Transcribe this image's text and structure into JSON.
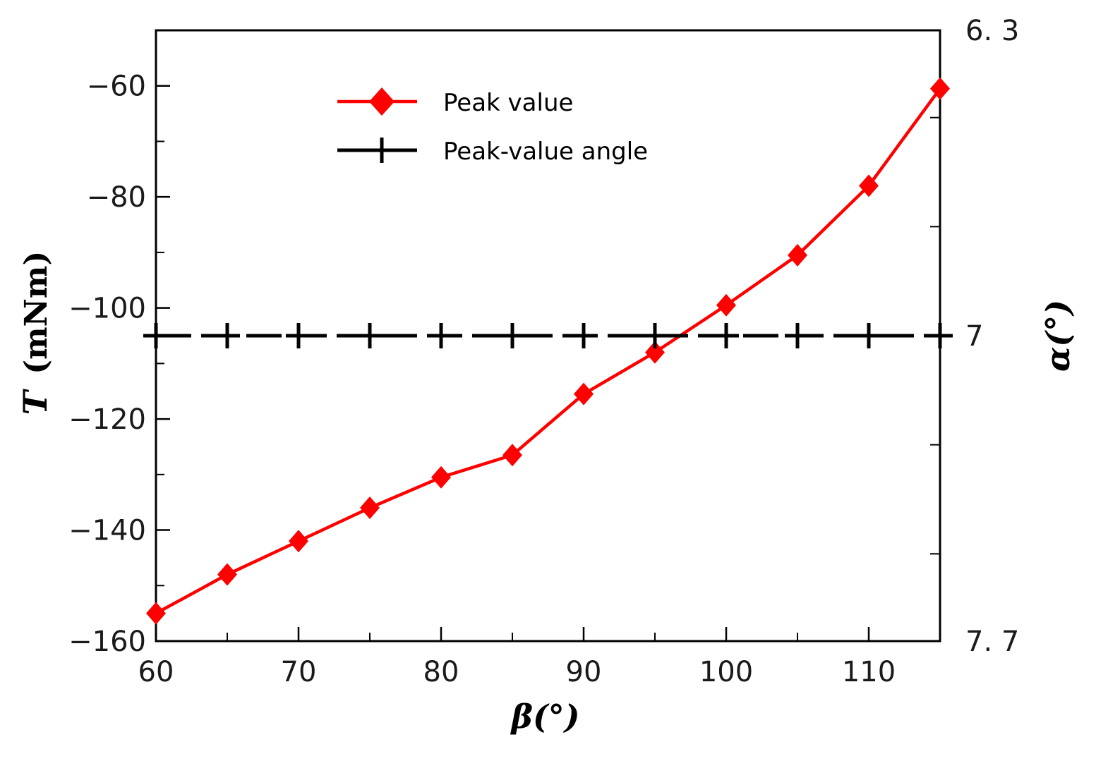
{
  "chart_data": {
    "type": "line",
    "x": [
      60,
      65,
      70,
      75,
      80,
      85,
      90,
      95,
      100,
      105,
      110,
      115
    ],
    "xlabel": "β(°)",
    "xlim": [
      60,
      115
    ],
    "x_ticks": [
      60,
      70,
      80,
      90,
      100,
      110
    ],
    "x_tick_labels": [
      "60",
      "70",
      "80",
      "90",
      "100",
      "110"
    ],
    "y_left": {
      "label_var": "T",
      "label_unit": "(mNm)",
      "lim": [
        -160,
        -50
      ],
      "ticks": [
        -60,
        -80,
        -100,
        -120,
        -140,
        -160
      ],
      "tick_labels": [
        "−60",
        "−80",
        "−100",
        "−120",
        "−140",
        "−160"
      ]
    },
    "y_right": {
      "label": "α(°)",
      "lim": [
        6.3,
        7.7
      ],
      "inverted": true,
      "tick_labels": [
        {
          "value": 6.3,
          "label": "6. 3"
        },
        {
          "value": 7.0,
          "label": "7"
        },
        {
          "value": 7.7,
          "label": "7. 7"
        }
      ]
    },
    "series": [
      {
        "name": "Peak value",
        "axis": "left",
        "color": "#ff0000",
        "marker": "diamond",
        "values": [
          -155,
          -148,
          -142,
          -136,
          -130.5,
          -126.5,
          -115.5,
          -108,
          -99.5,
          -90.5,
          -78,
          -60.5
        ]
      },
      {
        "name": "Peak-value angle",
        "axis": "right",
        "color": "#000000",
        "marker": "plus",
        "values": [
          7.0,
          7.0,
          7.0,
          7.0,
          7.0,
          7.0,
          7.0,
          7.0,
          7.0,
          7.0,
          7.0,
          7.0
        ]
      }
    ],
    "legend": {
      "position": "top-center",
      "entries": [
        "Peak value",
        "Peak-value angle"
      ]
    }
  }
}
